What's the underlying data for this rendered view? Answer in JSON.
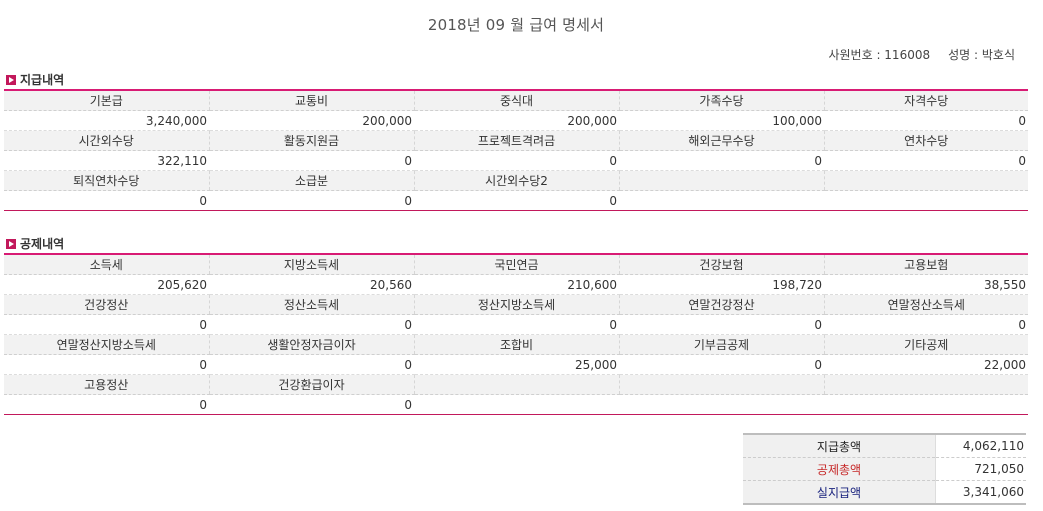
{
  "title": "2018년 09 월 급여 명세서",
  "employee": {
    "id_label": "사원번호 : 116008",
    "name_label": "성명 : 박호식"
  },
  "colors": {
    "accent": "#d81b74",
    "deduct_total": "#c62828",
    "net_total": "#1a237e"
  },
  "earnings": {
    "heading": "지급내역",
    "rows": [
      {
        "labels": [
          "기본급",
          "교통비",
          "중식대",
          "가족수당",
          "자격수당"
        ],
        "values": [
          "3,240,000",
          "200,000",
          "200,000",
          "100,000",
          "0"
        ]
      },
      {
        "labels": [
          "시간외수당",
          "활동지원금",
          "프로젝트격려금",
          "해외근무수당",
          "연차수당"
        ],
        "values": [
          "322,110",
          "0",
          "0",
          "0",
          "0"
        ]
      },
      {
        "labels": [
          "퇴직연차수당",
          "소급분",
          "시간외수당2",
          "",
          ""
        ],
        "values": [
          "0",
          "0",
          "0",
          "",
          ""
        ]
      }
    ]
  },
  "deductions": {
    "heading": "공제내역",
    "rows": [
      {
        "labels": [
          "소득세",
          "지방소득세",
          "국민연금",
          "건강보험",
          "고용보험"
        ],
        "values": [
          "205,620",
          "20,560",
          "210,600",
          "198,720",
          "38,550"
        ]
      },
      {
        "labels": [
          "건강정산",
          "정산소득세",
          "정산지방소득세",
          "연말건강정산",
          "연말정산소득세"
        ],
        "values": [
          "0",
          "0",
          "0",
          "0",
          "0"
        ]
      },
      {
        "labels": [
          "연말정산지방소득세",
          "생활안정자금이자",
          "조합비",
          "기부금공제",
          "기타공제"
        ],
        "values": [
          "0",
          "0",
          "25,000",
          "0",
          "22,000"
        ]
      },
      {
        "labels": [
          "고용정산",
          "건강환급이자",
          "",
          "",
          ""
        ],
        "values": [
          "0",
          "0",
          "",
          "",
          ""
        ]
      }
    ]
  },
  "summary": {
    "pay_total_label": "지급총액",
    "pay_total": "4,062,110",
    "deduct_total_label": "공제총액",
    "deduct_total": "721,050",
    "net_label": "실지급액",
    "net": "3,341,060"
  }
}
